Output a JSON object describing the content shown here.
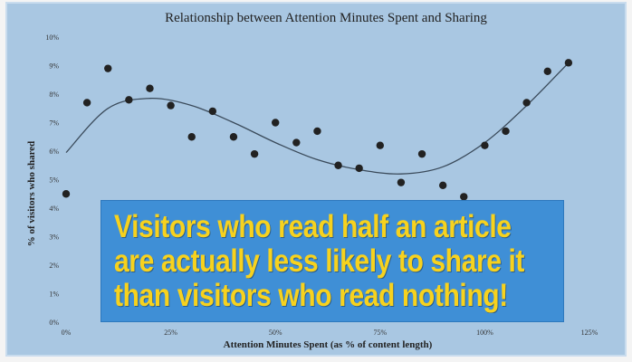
{
  "chart_data": {
    "type": "scatter",
    "title": "Relationship between Attention Minutes Spent and Sharing",
    "xlabel": "Attention Minutes Spent (as % of content length)",
    "ylabel": "% of visitors who shared",
    "xlim": [
      0,
      125
    ],
    "ylim": [
      0,
      10
    ],
    "x_ticks": [
      "0%",
      "25%",
      "50%",
      "75%",
      "100%",
      "125%"
    ],
    "y_ticks": [
      "0%",
      "1%",
      "2%",
      "3%",
      "4%",
      "5%",
      "6%",
      "7%",
      "8%",
      "9%",
      "10%"
    ],
    "grid": false,
    "point_color": "#222222",
    "trend_color": "#3a4a5a",
    "points": [
      {
        "x": 0,
        "y": 4.5
      },
      {
        "x": 5,
        "y": 7.7
      },
      {
        "x": 10,
        "y": 8.9
      },
      {
        "x": 15,
        "y": 7.8
      },
      {
        "x": 20,
        "y": 8.2
      },
      {
        "x": 25,
        "y": 7.6
      },
      {
        "x": 30,
        "y": 6.5
      },
      {
        "x": 35,
        "y": 7.4
      },
      {
        "x": 40,
        "y": 6.5
      },
      {
        "x": 45,
        "y": 5.9
      },
      {
        "x": 50,
        "y": 7.0
      },
      {
        "x": 55,
        "y": 6.3
      },
      {
        "x": 60,
        "y": 6.7
      },
      {
        "x": 65,
        "y": 5.5
      },
      {
        "x": 70,
        "y": 5.4
      },
      {
        "x": 75,
        "y": 6.2
      },
      {
        "x": 80,
        "y": 4.9
      },
      {
        "x": 85,
        "y": 5.9
      },
      {
        "x": 90,
        "y": 4.8
      },
      {
        "x": 95,
        "y": 4.4
      },
      {
        "x": 100,
        "y": 6.2
      },
      {
        "x": 105,
        "y": 6.7
      },
      {
        "x": 110,
        "y": 7.7
      },
      {
        "x": 115,
        "y": 8.8
      },
      {
        "x": 120,
        "y": 9.1
      }
    ],
    "trendline": {
      "type": "cubic",
      "points": [
        {
          "x": 0,
          "y": 5.95
        },
        {
          "x": 10,
          "y": 7.5
        },
        {
          "x": 20,
          "y": 7.85
        },
        {
          "x": 30,
          "y": 7.6
        },
        {
          "x": 40,
          "y": 7.0
        },
        {
          "x": 50,
          "y": 6.3
        },
        {
          "x": 60,
          "y": 5.7
        },
        {
          "x": 70,
          "y": 5.35
        },
        {
          "x": 80,
          "y": 5.2
        },
        {
          "x": 90,
          "y": 5.45
        },
        {
          "x": 100,
          "y": 6.3
        },
        {
          "x": 110,
          "y": 7.6
        },
        {
          "x": 120,
          "y": 9.1
        }
      ]
    }
  },
  "callout": {
    "lines": [
      "Visitors who read half an article",
      "are actually less likely to share it",
      "than visitors who read nothing!"
    ]
  }
}
